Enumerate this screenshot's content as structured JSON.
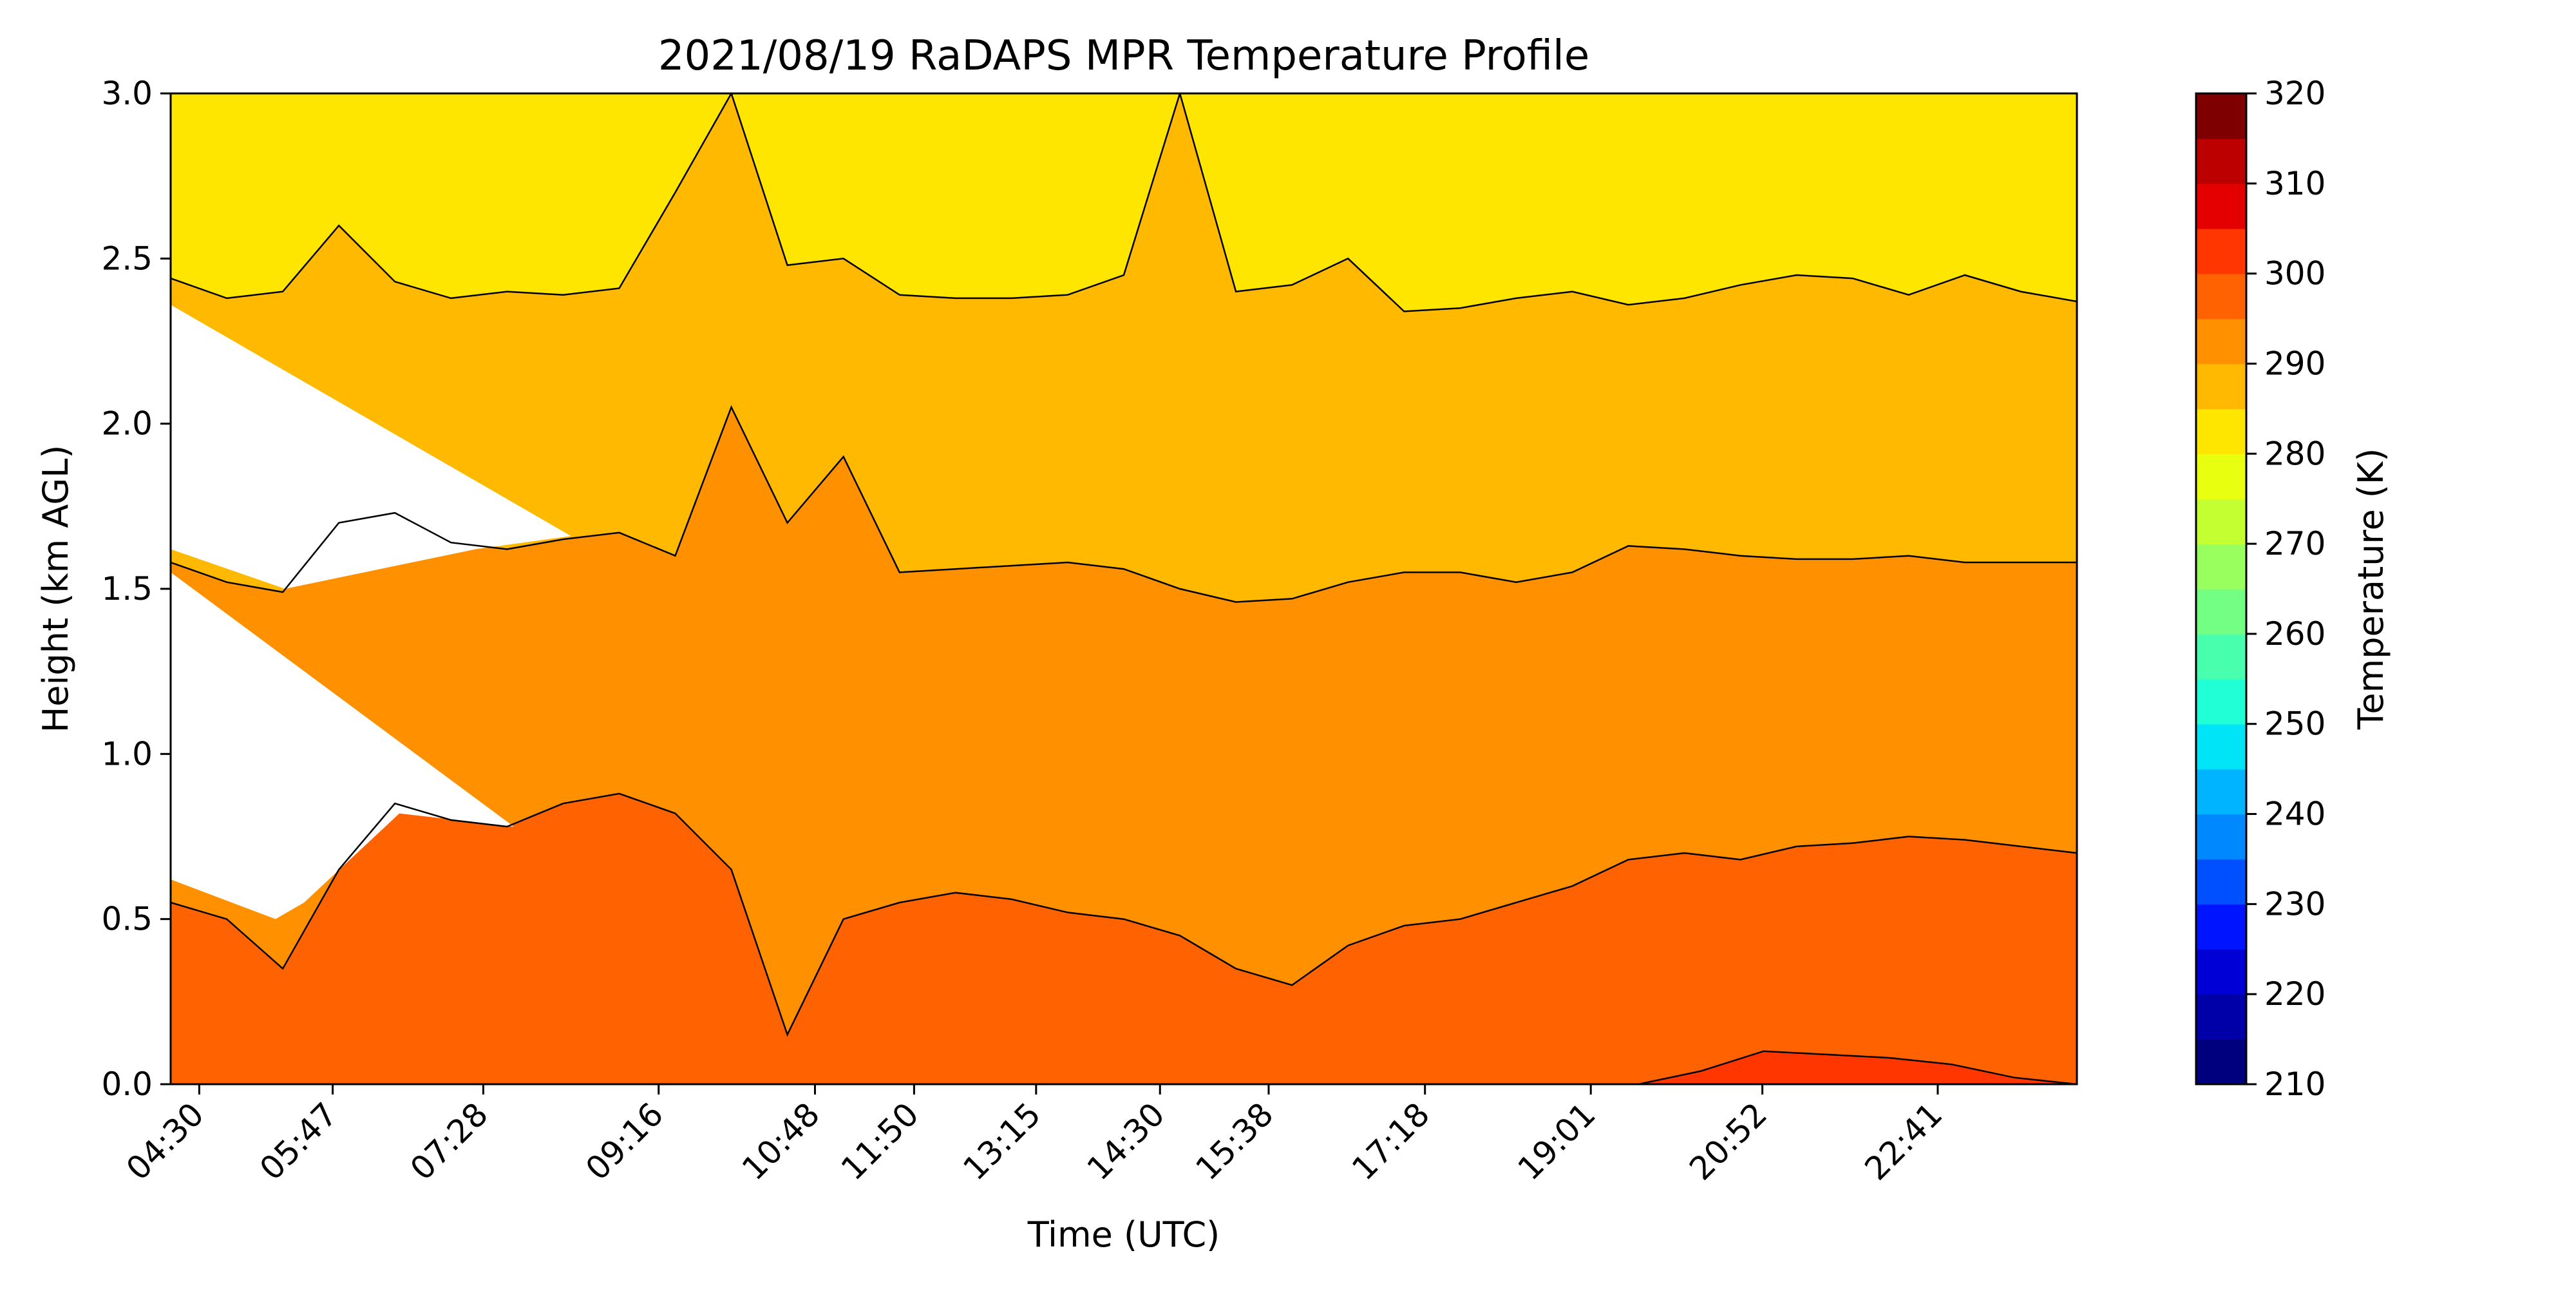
{
  "chart_data": {
    "type": "heatmap",
    "title": "2021/08/19 RaDAPS MPR Temperature Profile",
    "xlabel": "Time (UTC)",
    "ylabel": "Height (km AGL)",
    "ylim": [
      0,
      3
    ],
    "x_tick_labels": [
      "04:30",
      "05:47",
      "07:28",
      "09:16",
      "10:48",
      "11:50",
      "13:15",
      "14:30",
      "15:38",
      "17:18",
      "19:01",
      "20:52",
      "22:41"
    ],
    "y_ticks": [
      0.0,
      0.5,
      1.0,
      1.5,
      2.0,
      2.5,
      3.0
    ],
    "y_tick_labels": [
      "0.0",
      "0.5",
      "1.0",
      "1.5",
      "2.0",
      "2.5",
      "3.0"
    ],
    "grid": false,
    "colorbar": {
      "label": "Temperature (K)",
      "range": [
        210,
        320
      ],
      "tick_values": [
        210,
        220,
        230,
        240,
        250,
        260,
        270,
        280,
        290,
        300,
        310,
        320
      ],
      "tick_labels": [
        "210",
        "220",
        "230",
        "240",
        "250",
        "260",
        "270",
        "280",
        "290",
        "300",
        "310",
        "320"
      ],
      "colors": [
        "#00007f",
        "#0000a8",
        "#0000d6",
        "#0014ff",
        "#0050ff",
        "#0088ff",
        "#00b4ff",
        "#00e4f8",
        "#20ffd6",
        "#48ffae",
        "#72ff84",
        "#98ff5e",
        "#c4ff32",
        "#e8ff10",
        "#ffe600",
        "#ffb900",
        "#ff9000",
        "#ff6200",
        "#ff3600",
        "#e40000",
        "#bc0000",
        "#7f0000"
      ]
    },
    "contour_levels_K": [
      280,
      285,
      290,
      295,
      300
    ],
    "band_colors": {
      "above_2_4km_280_285K": "#ffe600",
      "285_290K": "#ffb900",
      "290_295K": "#ff9000",
      "295_300K": "#ff6200",
      "300_305K": "#ff3600"
    },
    "contours_km": {
      "isotherm_285K_height": [
        2.44,
        2.38,
        2.4,
        2.6,
        2.43,
        2.38,
        2.4,
        2.39,
        2.41,
        2.7,
        3.0,
        2.48,
        2.5,
        2.39,
        2.38,
        2.38,
        2.39,
        2.45,
        3.0,
        2.4,
        2.42,
        2.5,
        2.34,
        2.35,
        2.38,
        2.4,
        2.36,
        2.38,
        2.42,
        2.45,
        2.44,
        2.39,
        2.45,
        2.4,
        2.37
      ],
      "isotherm_290K_height": [
        1.58,
        1.52,
        1.49,
        1.7,
        1.73,
        1.64,
        1.62,
        1.65,
        1.67,
        1.6,
        2.05,
        1.7,
        1.9,
        1.55,
        1.56,
        1.57,
        1.58,
        1.56,
        1.5,
        1.46,
        1.47,
        1.52,
        1.55,
        1.55,
        1.52,
        1.55,
        1.63,
        1.62,
        1.6,
        1.59,
        1.59,
        1.6,
        1.58,
        1.58,
        1.58
      ],
      "isotherm_295K_height": [
        0.55,
        0.5,
        0.35,
        0.65,
        0.85,
        0.8,
        0.78,
        0.85,
        0.88,
        0.82,
        0.65,
        0.15,
        0.5,
        0.55,
        0.58,
        0.56,
        0.52,
        0.5,
        0.45,
        0.35,
        0.3,
        0.42,
        0.48,
        0.5,
        0.55,
        0.6,
        0.68,
        0.7,
        0.68,
        0.72,
        0.73,
        0.75,
        0.74,
        0.72,
        0.7
      ],
      "isotherm_300K_height_late": [
        0.0,
        0.04,
        0.1,
        0.09,
        0.08,
        0.06,
        0.02,
        0.0
      ]
    }
  }
}
